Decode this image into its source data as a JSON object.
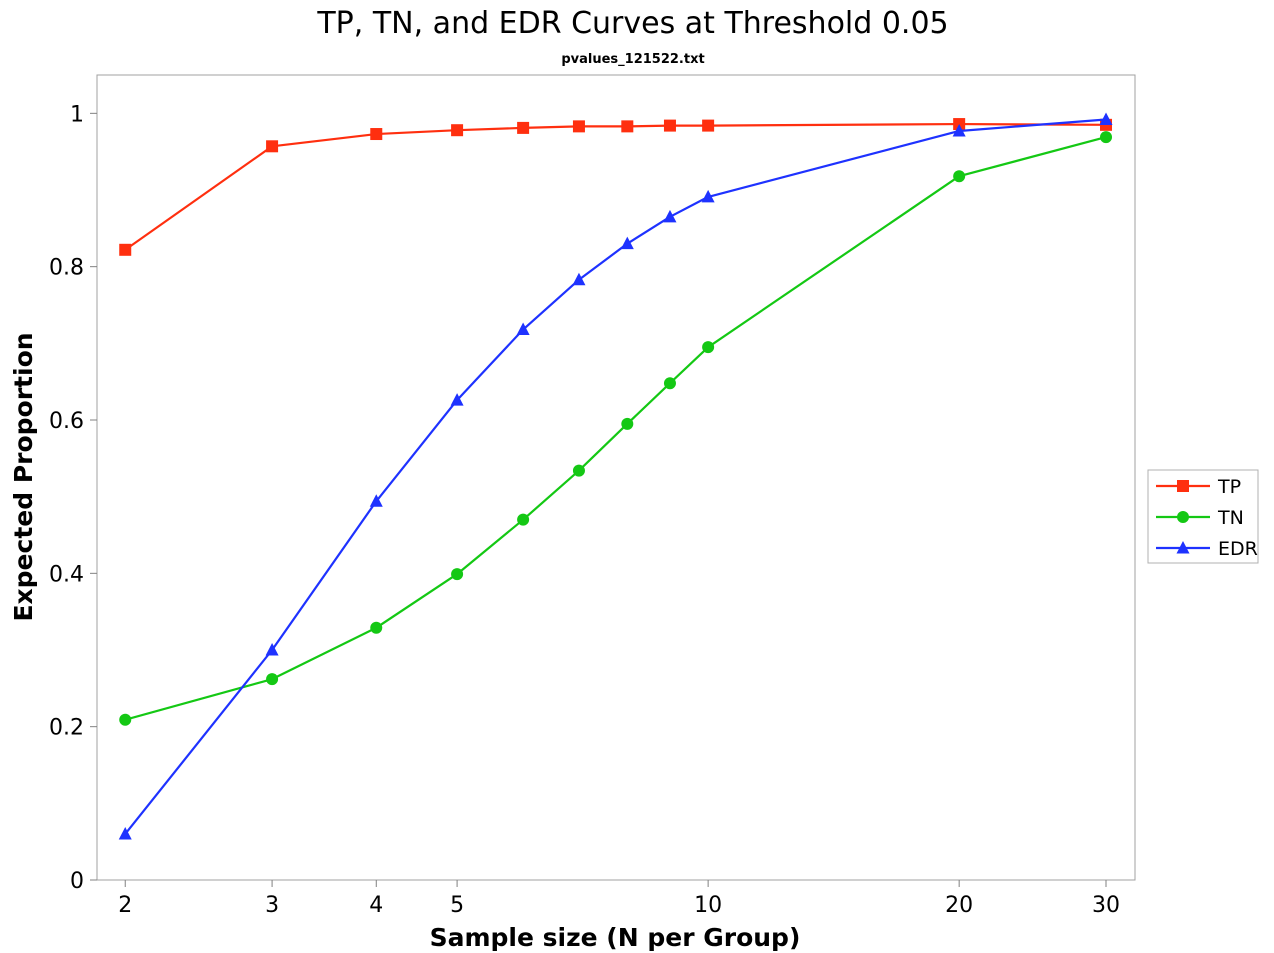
{
  "chart_data": {
    "type": "line",
    "title": "TP, TN, and EDR Curves at Threshold 0.05",
    "subtitle": "pvalues_121522.txt",
    "xlabel": "Sample size (N per Group)",
    "ylabel": "Expected Proportion",
    "x_scale": "log",
    "xlim": [
      1.85,
      32.5
    ],
    "ylim": [
      0,
      1.05
    ],
    "x_ticks": [
      2,
      3,
      4,
      5,
      10,
      20,
      30
    ],
    "y_ticks": [
      0,
      0.2,
      0.4,
      0.6,
      0.8,
      1
    ],
    "y_tick_labels": [
      "0",
      "0.2",
      "0.4",
      "0.6",
      "0.8",
      "1"
    ],
    "grid": false,
    "legend_position": "right",
    "series": [
      {
        "name": "TP",
        "color": "#ff2f0f",
        "marker": "square",
        "x": [
          2,
          3,
          4,
          5,
          6,
          7,
          8,
          9,
          10,
          20,
          30
        ],
        "values": [
          0.822,
          0.957,
          0.973,
          0.978,
          0.981,
          0.983,
          0.983,
          0.984,
          0.984,
          0.986,
          0.985
        ]
      },
      {
        "name": "TN",
        "color": "#14c814",
        "marker": "circle",
        "x": [
          2,
          3,
          4,
          5,
          6,
          7,
          8,
          9,
          10,
          20,
          30
        ],
        "values": [
          0.209,
          0.262,
          0.329,
          0.399,
          0.47,
          0.534,
          0.595,
          0.648,
          0.695,
          0.918,
          0.969
        ]
      },
      {
        "name": "EDR",
        "color": "#1e32ff",
        "marker": "triangle",
        "x": [
          2,
          3,
          4,
          5,
          6,
          7,
          8,
          9,
          10,
          20,
          30
        ],
        "values": [
          0.06,
          0.3,
          0.494,
          0.626,
          0.718,
          0.783,
          0.83,
          0.865,
          0.891,
          0.977,
          0.992
        ]
      }
    ]
  }
}
